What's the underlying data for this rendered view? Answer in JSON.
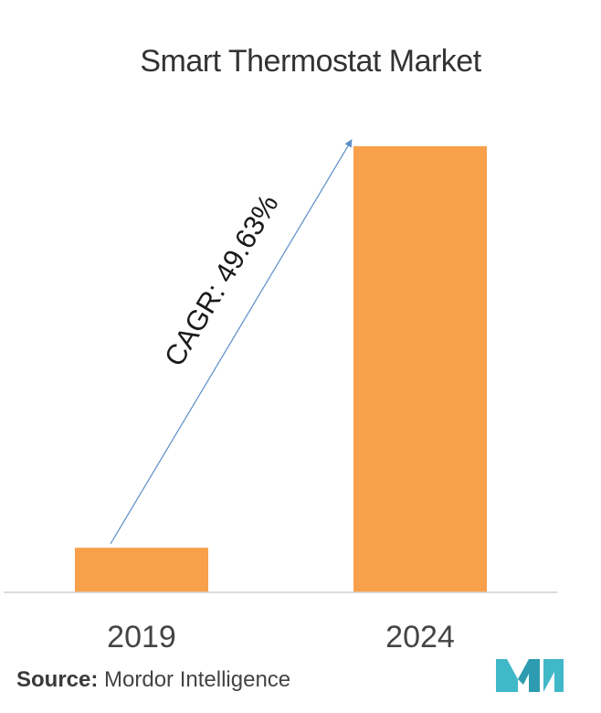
{
  "chart_data": {
    "type": "bar",
    "title": "Smart Thermostat Market",
    "categories": [
      "2019",
      "2024"
    ],
    "values": [
      10,
      100
    ],
    "ylim": [
      0,
      100
    ],
    "xlabel": "",
    "ylabel": "",
    "grid": false,
    "bar_color": "#F9A04A",
    "annotation": {
      "text": "CAGR: 49.63%",
      "color": "#5B8FC7"
    }
  },
  "source": {
    "label": "Source:",
    "text": "Mordor Intelligence"
  },
  "logo": {
    "icon": "mordor-intelligence-logo",
    "color": "#41B8C8"
  }
}
